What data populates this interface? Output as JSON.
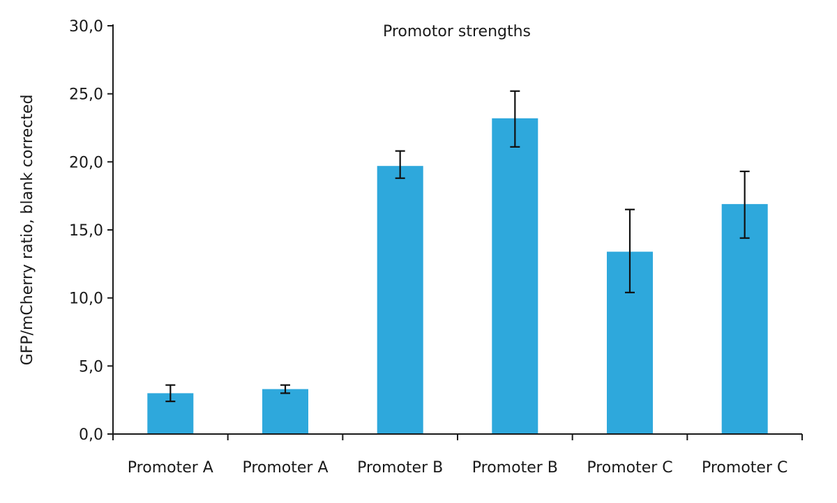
{
  "chart_data": {
    "type": "bar",
    "title": "Promotor strengths",
    "xlabel": "",
    "ylabel": "GFP/mCherry ratio, blank corrected",
    "categories": [
      "Promoter A",
      "Promoter A",
      "Promoter B",
      "Promoter B",
      "Promoter C",
      "Promoter C"
    ],
    "values": [
      3.0,
      3.3,
      19.7,
      23.2,
      13.4,
      16.9
    ],
    "error_low": [
      2.4,
      3.0,
      18.8,
      21.1,
      10.4,
      14.4
    ],
    "error_high": [
      3.6,
      3.6,
      20.8,
      25.2,
      16.5,
      19.3
    ],
    "ylim": [
      0,
      30
    ],
    "yticks": [
      "0,0",
      "5,0",
      "10,0",
      "15,0",
      "20,0",
      "25,0",
      "30,0"
    ],
    "grid": false,
    "legend": "none",
    "bar_color": "#2ea8dc",
    "error_color": "#111111",
    "axis_color": "#1a1a1a"
  }
}
